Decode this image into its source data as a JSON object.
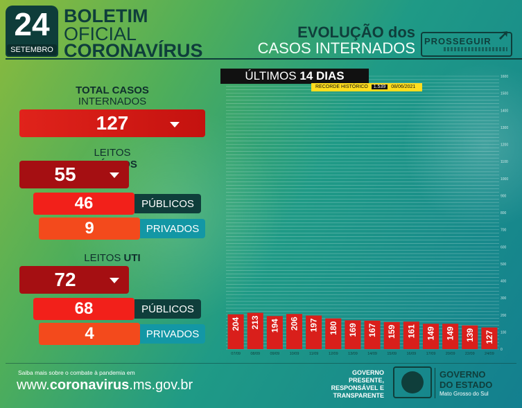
{
  "header": {
    "day": "24",
    "month": "SETEMBRO",
    "title_line1": "BOLETIM",
    "title_line2": "OFICIAL",
    "title_line3": "CORONAVÍRUS",
    "evolution_line1": "EVOLUÇÃO dos",
    "evolution_line2": "CASOS INTERNADOS",
    "logo": "PROSSEGUIR"
  },
  "stats": {
    "total_label_1": "TOTAL CASOS",
    "total_label_2": "INTERNADOS",
    "total_value": "127",
    "clinical_label_pre": "LEITOS",
    "clinical_label_bold": "CLÍNICOS",
    "clinical_total": "55",
    "clinical_public": "46",
    "clinical_private": "9",
    "public_label": "PÚBLICOS",
    "private_label": "PRIVADOS",
    "uti_label_pre": "LEITOS",
    "uti_label_bold": "UTI",
    "uti_total": "72",
    "uti_public": "68",
    "uti_private": "4"
  },
  "chart_header": {
    "pre": "ÚLTIMOS",
    "bold": "14 DIAS",
    "record_label": "RECORDE HISTÓRICO",
    "record_value": "1.539",
    "record_date": "08/06/2021"
  },
  "chart_data": {
    "type": "bar",
    "categories": [
      "07/09",
      "08/09",
      "09/09",
      "10/09",
      "11/09",
      "12/09",
      "13/09",
      "14/09",
      "15/09",
      "16/09",
      "17/09",
      "20/09",
      "22/09",
      "24/09"
    ],
    "values": [
      204,
      213,
      194,
      206,
      197,
      180,
      169,
      167,
      159,
      161,
      149,
      149,
      139,
      127
    ],
    "ylim": [
      0,
      1600
    ],
    "y_ticks": [
      0,
      100,
      200,
      300,
      400,
      500,
      600,
      700,
      800,
      900,
      1000,
      1100,
      1200,
      1300,
      1400,
      1500,
      1600
    ],
    "grid": true,
    "bar_color": "#d91f1b"
  },
  "footer": {
    "small": "Saiba mais sobre o combate à pandemia em",
    "url_pre": "www.",
    "url_bold": "coronavirus",
    "url_post": ".ms.gov.br",
    "motto_1": "GOVERNO",
    "motto_2": "PRESENTE,",
    "motto_3": "RESPONSÁVEL E",
    "motto_4": "TRANSPARENTE",
    "gov_1": "GOVERNO",
    "gov_2": "DO ESTADO",
    "gov_3": "Mato Grosso do Sul"
  }
}
